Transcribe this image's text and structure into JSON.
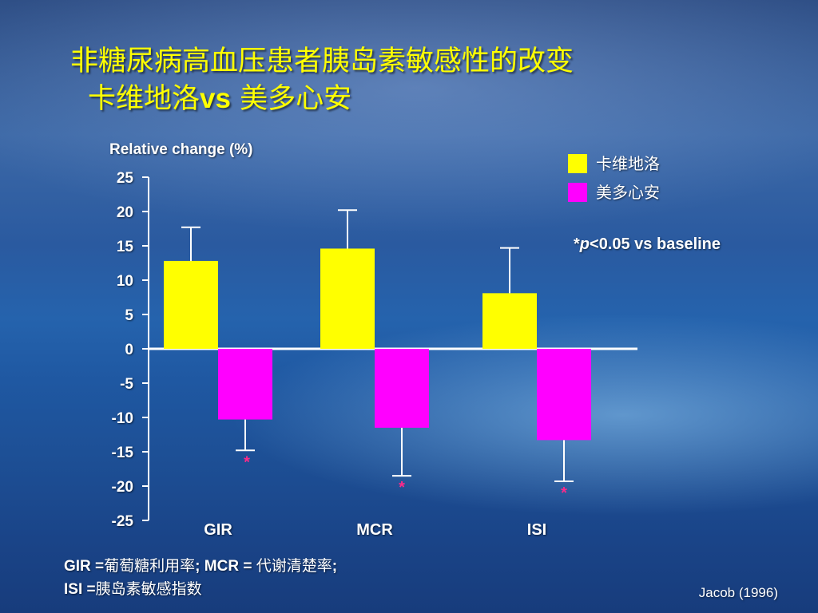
{
  "slide": {
    "title_line1": "非糖尿病高血压患者胰岛素敏感性的改变",
    "title_line2_a": "卡维地洛",
    "title_line2_vs": "vs",
    "title_line2_b": " 美多心安",
    "footnote_line1_a": "GIR =",
    "footnote_line1_b": "葡萄糖利用率",
    "footnote_line1_c": "; MCR = ",
    "footnote_line1_d": "代谢清楚率",
    "footnote_line1_e": ";",
    "footnote_line2_a": "ISI =",
    "footnote_line2_b": "胰岛素敏感指数",
    "citation": "Jacob (1996)"
  },
  "chart_data": {
    "type": "bar",
    "ylabel": "Relative change (%)",
    "ylim": [
      -25,
      25
    ],
    "yticks": [
      25,
      20,
      15,
      10,
      5,
      0,
      -5,
      -10,
      -15,
      -20,
      -25
    ],
    "categories": [
      "GIR",
      "MCR",
      "ISI"
    ],
    "series": [
      {
        "name": "卡维地洛",
        "color": "#ffff00",
        "values": [
          12.8,
          14.6,
          8.1
        ],
        "error": [
          4.9,
          5.6,
          6.6
        ],
        "significant": [
          false,
          false,
          false
        ]
      },
      {
        "name": "美多心安",
        "color": "#ff00ff",
        "values": [
          -10.3,
          -11.5,
          -13.3
        ],
        "error": [
          4.5,
          7.0,
          6.0
        ],
        "significant": [
          true,
          true,
          true
        ]
      }
    ],
    "significance_marker": "*",
    "note_star": "*",
    "note_p": "p",
    "note_rest": "<0.05 vs baseline",
    "legend_position": "top-right",
    "grid": false
  }
}
